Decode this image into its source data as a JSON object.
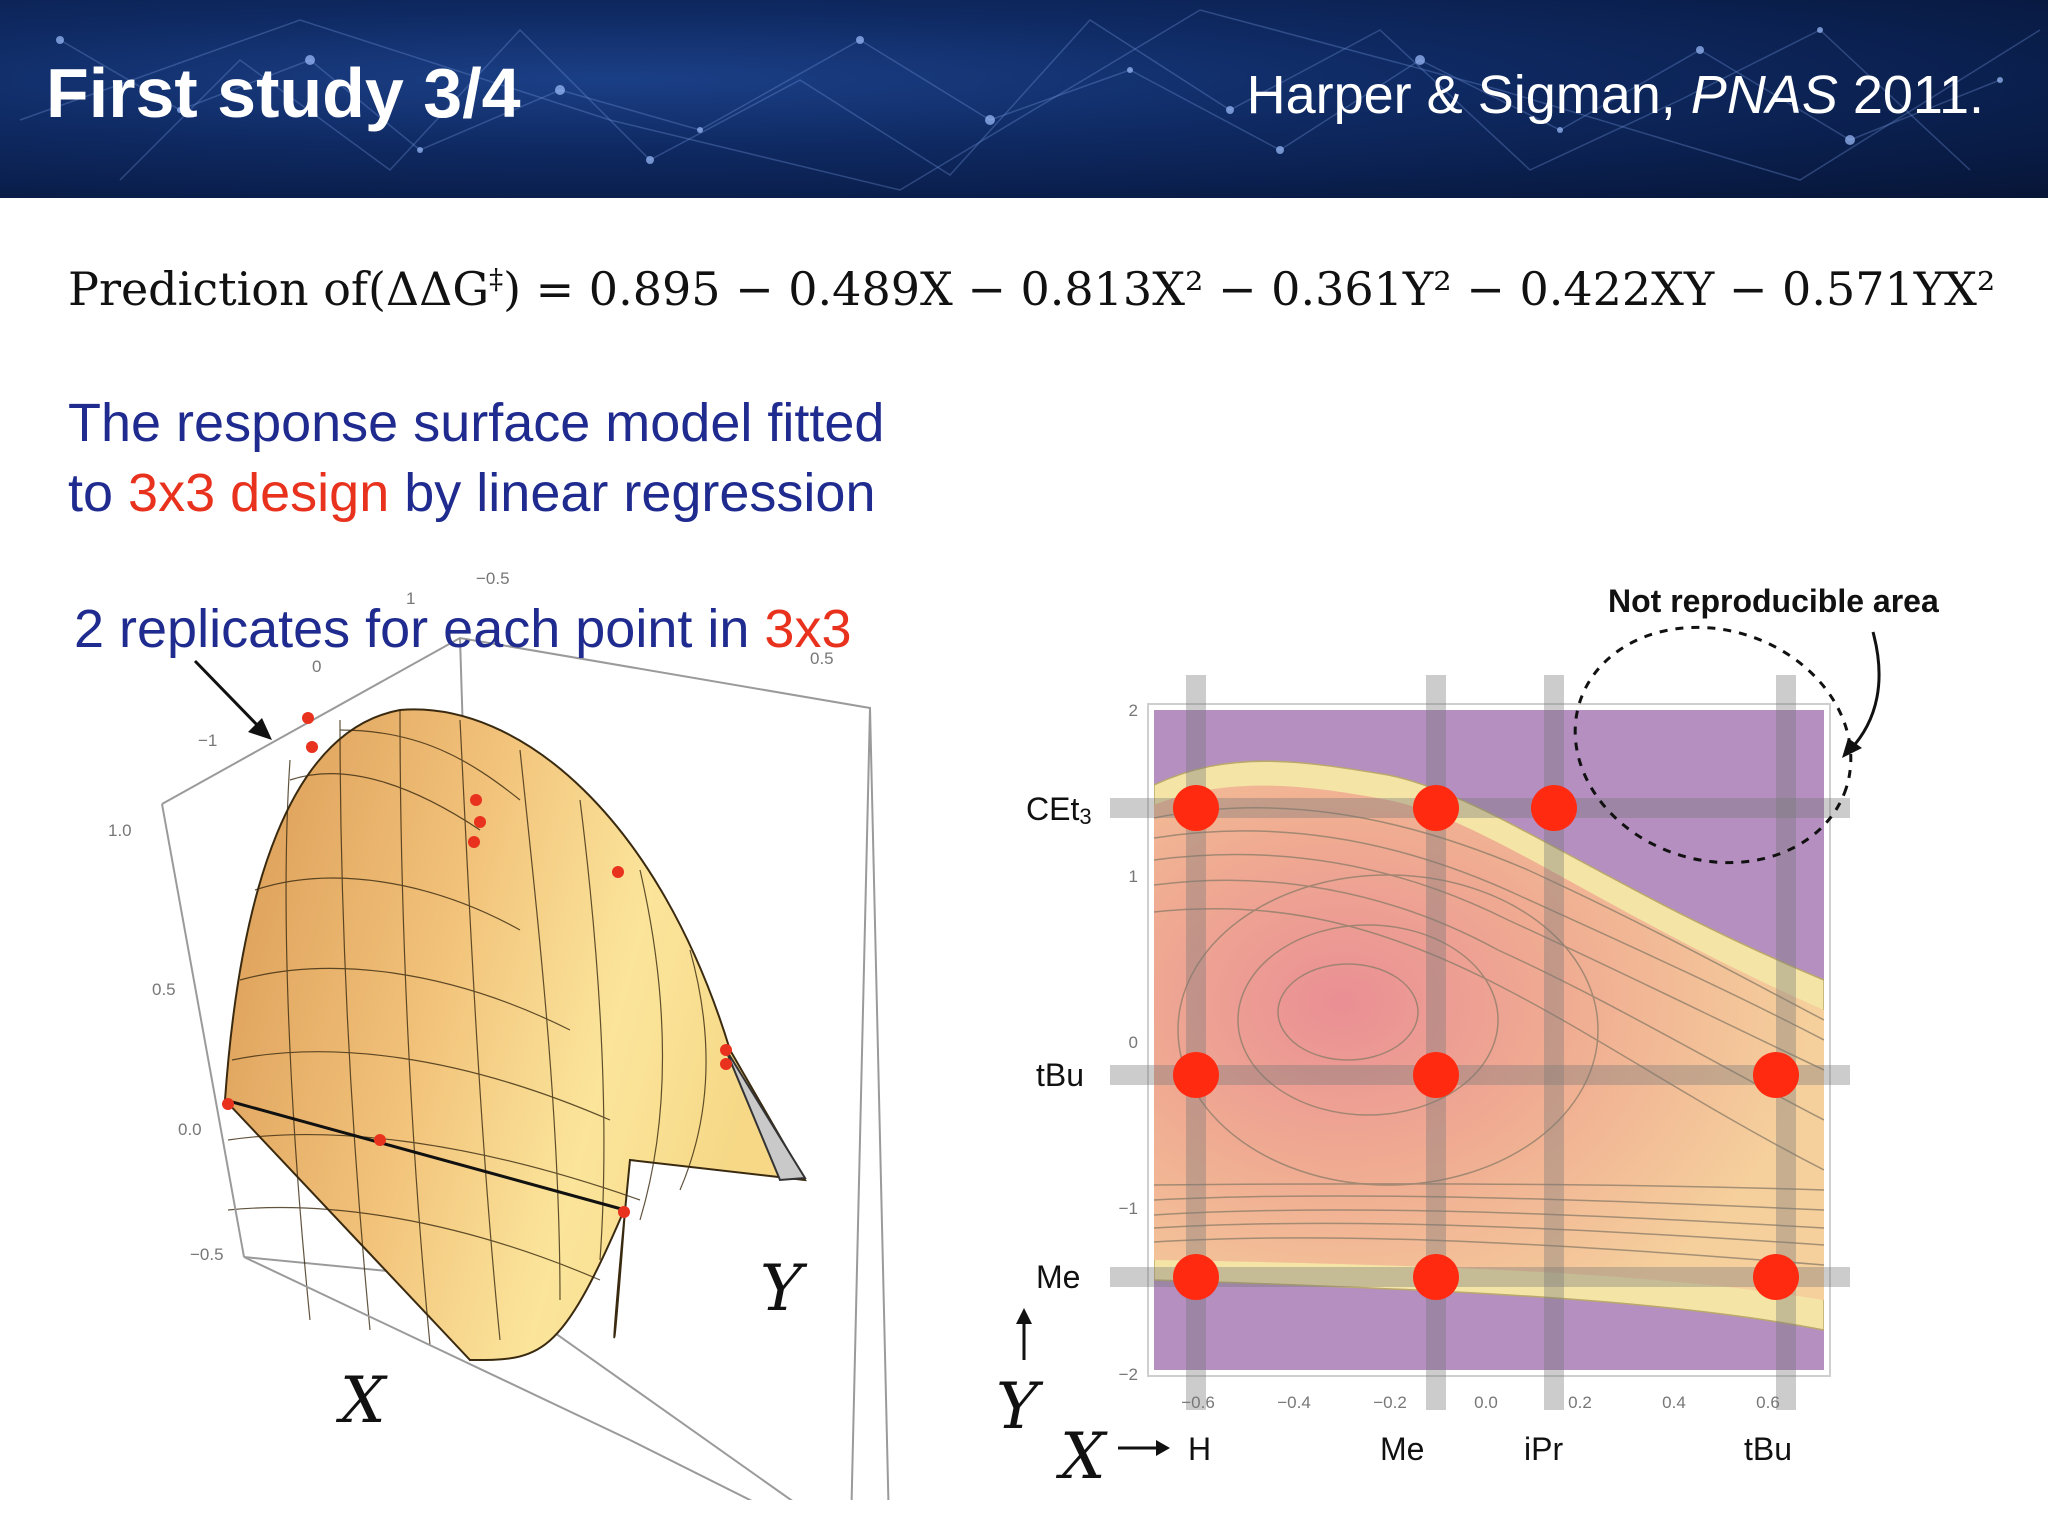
{
  "header": {
    "title": "First study 3/4",
    "citation_authors": "Harper & Sigman, ",
    "citation_journal": "PNAS",
    "citation_year": " 2011."
  },
  "equation": {
    "lhs_text": "Prediction of(ΔΔG",
    "lhs_sup": "‡",
    "rhs_text": ") = 0.895 − 0.489X − 0.813X² − 0.361Y² − 0.422XY − 0.571YX²"
  },
  "description": {
    "line1": "The response surface model fitted",
    "line2_pre": "to ",
    "line2_red": "3x3 design",
    "line2_post": " by linear regression"
  },
  "replicates": {
    "text": "2 replicates for each point in ",
    "red": "3x3"
  },
  "surface_plot": {
    "z_ticks": [
      "1.0",
      "0.5",
      "0.0",
      "−0.5"
    ],
    "x_ticks": [
      "1",
      "0",
      "−1"
    ],
    "y_ticks": [
      "−0.5",
      "0.5"
    ],
    "x_label": "X",
    "y_label": "Y",
    "surface_color": "#e8b36a",
    "point_color": "#e8321e"
  },
  "contour_plot": {
    "annotation": "Not reproducible area",
    "y_ticks": [
      "2",
      "1",
      "0",
      "−1",
      "−2"
    ],
    "x_ticks": [
      "−0.6",
      "−0.4",
      "−0.2",
      "0.0",
      "0.2",
      "0.4",
      "0.6"
    ],
    "row_labels": [
      "CEt",
      "tBu",
      "Me"
    ],
    "row_label_sub": "3",
    "col_labels": [
      "H",
      "Me",
      "iPr",
      "tBu"
    ],
    "x_label": "X",
    "y_label": "Y",
    "background_color": "#b48fc0",
    "point_color": "#ff2a10",
    "design_points": [
      {
        "x": -0.6,
        "y": 1.4
      },
      {
        "x": -0.1,
        "y": 1.4
      },
      {
        "x": 0.15,
        "y": 1.4
      },
      {
        "x": -0.6,
        "y": -0.2
      },
      {
        "x": -0.1,
        "y": -0.2
      },
      {
        "x": 0.62,
        "y": -0.2
      },
      {
        "x": -0.6,
        "y": -1.42
      },
      {
        "x": -0.1,
        "y": -1.42
      },
      {
        "x": 0.62,
        "y": -1.42
      }
    ]
  }
}
